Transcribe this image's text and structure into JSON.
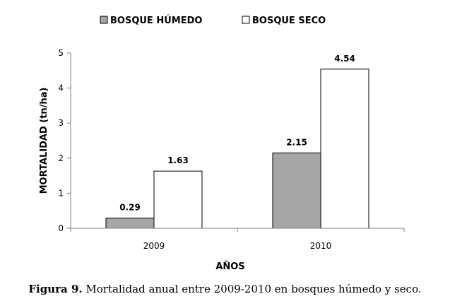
{
  "chart_data": {
    "type": "bar",
    "categories": [
      "2009",
      "2010"
    ],
    "series": [
      {
        "name": "BOSQUE HÚMEDO",
        "values": [
          0.29,
          2.15
        ],
        "color": "#a6a6a6"
      },
      {
        "name": "BOSQUE SECO",
        "values": [
          1.63,
          4.54
        ],
        "color": "#ffffff"
      }
    ],
    "data_labels": [
      [
        "0.29",
        "2.15"
      ],
      [
        "1.63",
        "4.54"
      ]
    ],
    "xlabel": "AÑOS",
    "ylabel": "MORTALIDAD (tn/ha)",
    "ylim": [
      0,
      5
    ],
    "yticks": [
      0,
      1,
      2,
      3,
      4,
      5
    ],
    "grid": false,
    "legend_position": "top-center"
  },
  "caption": {
    "label": "Figura 9.",
    "text": " Mortalidad anual entre 2009-2010 en bosques húmedo y seco."
  }
}
